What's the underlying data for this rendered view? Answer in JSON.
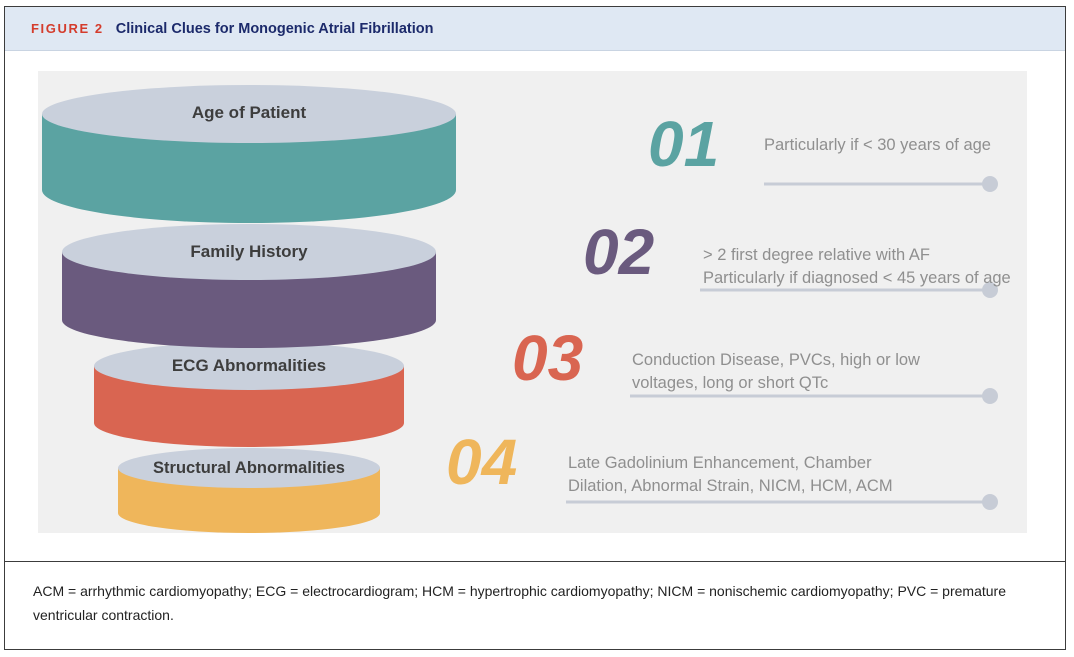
{
  "figure": {
    "label": "FIGURE 2",
    "title": "Clinical Clues for Monogenic Atrial Fibrillation"
  },
  "tiers": [
    {
      "label": "Age of Patient",
      "number": "01",
      "color": "#5ba3a2",
      "top_color": "#c9d0dc",
      "desc_lines": [
        "Particularly if < 30 years of age"
      ]
    },
    {
      "label": "Family History",
      "number": "02",
      "color": "#6a5a7e",
      "top_color": "#c9d0dc",
      "desc_lines": [
        "> 2 first degree relative with AF",
        "Particularly if diagnosed < 45 years of age"
      ]
    },
    {
      "label": "ECG Abnormalities",
      "number": "03",
      "color": "#d96551",
      "top_color": "#c9d0dc",
      "desc_lines": [
        "Conduction Disease, PVCs, high or low",
        "voltages, long or short QTc"
      ]
    },
    {
      "label": "Structural Abnormalities",
      "number": "04",
      "color": "#efb65b",
      "top_color": "#c9d0dc",
      "desc_lines": [
        "Late Gadolinium Enhancement, Chamber",
        "Dilation, Abnormal Strain, NICM, HCM, ACM"
      ]
    }
  ],
  "connector_color": "#c7ccd6",
  "footnote": "ACM = arrhythmic cardiomyopathy; ECG = electrocardiogram; HCM = hypertrophic cardiomyopathy; NICM = nonischemic cardiomyopathy; PVC = premature ventricular contraction."
}
